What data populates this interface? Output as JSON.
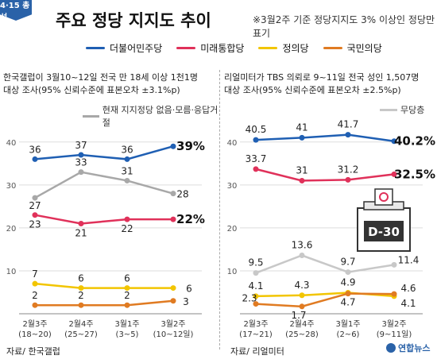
{
  "badge": "4·15 총선",
  "title": "주요 정당 지지도 추이",
  "subtitle": "※3월2주 기준 정당지지도 3% 이상인 정당만 표기",
  "legend": [
    {
      "name": "더불어민주당",
      "color": "#1f5fb3"
    },
    {
      "name": "미래통합당",
      "color": "#e0315a"
    },
    {
      "name": "정의당",
      "color": "#f2c500"
    },
    {
      "name": "국민의당",
      "color": "#e07b22"
    }
  ],
  "left": {
    "description_line1": "한국갤럽이 3월10~12일 전국 만 18세 이상 1천1명",
    "description_line2": "대상 조사(95% 신뢰수준에 표본오차 ±3.1%p)",
    "extra_legend": "현재 지지정당 없음·모름·응답거절",
    "source": "자료/ 한국갤럽"
  },
  "right": {
    "description_line1": "리얼미터가 TBS 의뢰로 9~11일 전국 성인 1,507명",
    "description_line2": "대상 조사(95% 신뢰수준에 표본오차 ±2.5%p)",
    "extra_legend": "무당층",
    "source": "자료/ 리얼미터",
    "dday": "D-30"
  },
  "logo": "연합뉴스",
  "chart_data": [
    {
      "type": "line",
      "x": [
        "2월3주\n(18~20)",
        "2월4주\n(25~27)",
        "3월1주\n(3~5)",
        "3월2주\n(10~12일)"
      ],
      "ylim": [
        0,
        42
      ],
      "yticks": [
        10,
        20,
        30,
        40
      ],
      "series": [
        {
          "name": "더불어민주당",
          "color": "#1f5fb3",
          "values": [
            36,
            37,
            36,
            39
          ],
          "last_label": "39%"
        },
        {
          "name": "현재 지지정당 없음·모름·응답거절",
          "color": "#a8a8a8",
          "values": [
            27,
            33,
            31,
            28
          ]
        },
        {
          "name": "미래통합당",
          "color": "#e0315a",
          "values": [
            23,
            21,
            22,
            22
          ],
          "last_label": "22%"
        },
        {
          "name": "정의당",
          "color": "#f2c500",
          "values": [
            7,
            6,
            6,
            6
          ]
        },
        {
          "name": "국민의당",
          "color": "#e07b22",
          "values": [
            2,
            2,
            2,
            3
          ]
        }
      ]
    },
    {
      "type": "line",
      "x": [
        "2월3주\n(17~21)",
        "2월4주\n(25~28)",
        "3월1주\n(2~6)",
        "3월2주\n(9~11일)"
      ],
      "ylim": [
        0,
        42
      ],
      "yticks": [
        10,
        20,
        30,
        40
      ],
      "series": [
        {
          "name": "더불어민주당",
          "color": "#1f5fb3",
          "values": [
            40.5,
            41.0,
            41.7,
            40.2
          ],
          "last_label": "40.2%"
        },
        {
          "name": "미래통합당",
          "color": "#e0315a",
          "values": [
            33.7,
            31.0,
            31.2,
            32.5
          ],
          "last_label": "32.5%"
        },
        {
          "name": "무당층",
          "color": "#c8c8c8",
          "values": [
            9.5,
            13.6,
            9.7,
            11.4
          ]
        },
        {
          "name": "정의당",
          "color": "#f2c500",
          "values": [
            4.1,
            4.3,
            4.9,
            4.1
          ]
        },
        {
          "name": "국민의당",
          "color": "#e07b22",
          "values": [
            2.3,
            1.7,
            4.7,
            4.6
          ]
        }
      ]
    }
  ]
}
